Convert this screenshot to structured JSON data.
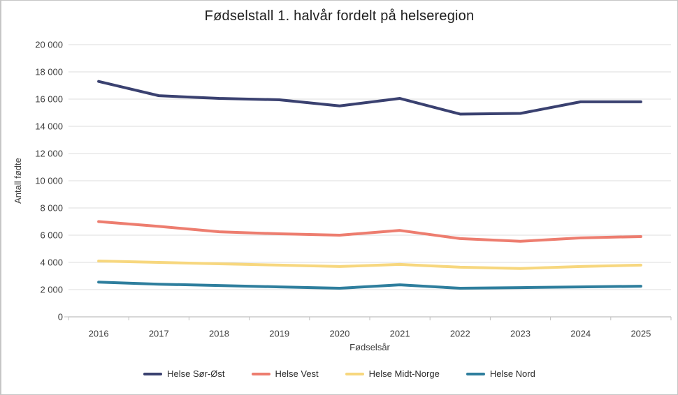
{
  "chart_data": {
    "type": "line",
    "title": "Fødselstall 1. halvår fordelt på helseregion",
    "xlabel": "Fødselsår",
    "ylabel": "Antall fødte",
    "categories": [
      "2016",
      "2017",
      "2018",
      "2019",
      "2020",
      "2021",
      "2022",
      "2023",
      "2024",
      "2025"
    ],
    "series": [
      {
        "name": "Helse Sør-Øst",
        "color": "#3A4170",
        "values": [
          17300,
          16250,
          16050,
          15950,
          15500,
          16050,
          14900,
          14950,
          15800,
          15800
        ]
      },
      {
        "name": "Helse Vest",
        "color": "#ED7D6F",
        "values": [
          7000,
          6650,
          6250,
          6100,
          6000,
          6350,
          5750,
          5550,
          5800,
          5900
        ]
      },
      {
        "name": "Helse Midt-Norge",
        "color": "#F7D77E",
        "values": [
          4100,
          4000,
          3900,
          3800,
          3700,
          3850,
          3650,
          3550,
          3700,
          3800
        ]
      },
      {
        "name": "Helse Nord",
        "color": "#2E7E9D",
        "values": [
          2550,
          2400,
          2300,
          2200,
          2100,
          2350,
          2100,
          2150,
          2200,
          2250
        ]
      }
    ],
    "ylim": [
      0,
      20000
    ],
    "ytick_step": 2000,
    "ytick_labels": [
      "0",
      "2 000",
      "4 000",
      "6 000",
      "8 000",
      "10 000",
      "12 000",
      "14 000",
      "16 000",
      "18 000",
      "20 000"
    ],
    "grid": "horizontal",
    "legend_position": "bottom"
  },
  "style": {
    "gridline_color": "#DCDCDC",
    "axis_color": "#BFBFBF",
    "tick_color": "#BFBFBF"
  }
}
